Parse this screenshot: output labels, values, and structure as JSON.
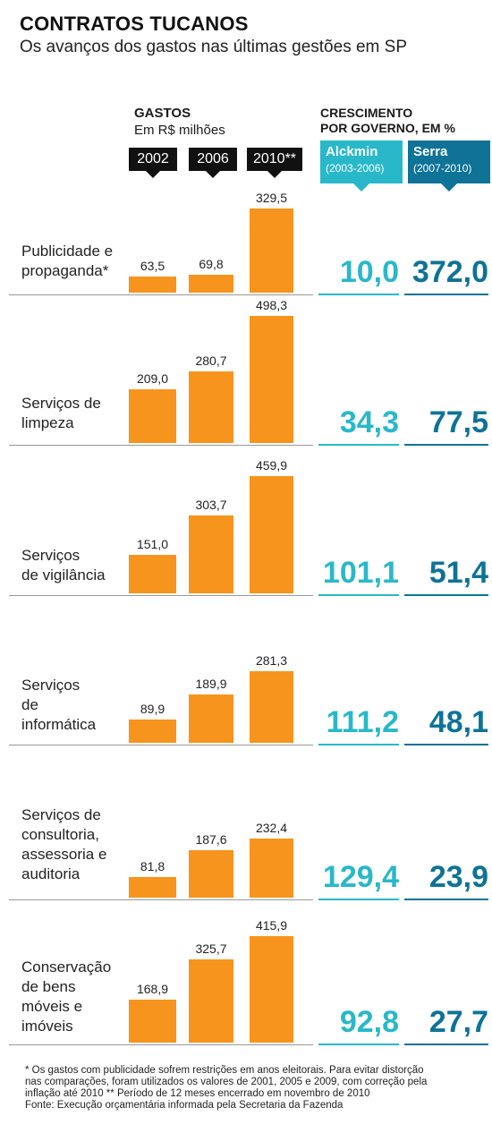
{
  "header": {
    "title": "CONTRATOS TUCANOS",
    "subtitle": "Os avanços dos gastos nas últimas gestões em SP"
  },
  "spending": {
    "title": "GASTOS",
    "unit": "Em R$ milhões",
    "years": [
      "2002",
      "2006",
      "2010**"
    ]
  },
  "growth": {
    "title_line1": "CRESCIMENTO",
    "title_line2": "POR GOVERNO, EM %",
    "governments": [
      {
        "name": "Alckmin",
        "period": "(2003-2006)"
      },
      {
        "name": "Serra",
        "period": "(2007-2010)"
      }
    ]
  },
  "colors": {
    "bar": "#f7941d",
    "alckmin": "#29b8c9",
    "serra": "#0e7396"
  },
  "chart_data": {
    "type": "bar",
    "series": [
      {
        "name": "2002",
        "values": [
          63.5,
          209.0,
          151.0,
          89.9,
          81.8,
          168.9
        ]
      },
      {
        "name": "2006",
        "values": [
          69.8,
          280.7,
          303.7,
          189.9,
          187.6,
          325.7
        ]
      },
      {
        "name": "2010**",
        "values": [
          329.5,
          498.3,
          459.9,
          281.3,
          232.4,
          415.9
        ]
      }
    ],
    "categories": [
      {
        "lines": [
          "Publicidade e",
          "propaganda*"
        ],
        "values": [
          "63,5",
          "69,8",
          "329,5"
        ],
        "alckmin": "10,0",
        "serra": "372,0"
      },
      {
        "lines": [
          "Serviços de",
          "limpeza"
        ],
        "values": [
          "209,0",
          "280,7",
          "498,3"
        ],
        "alckmin": "34,3",
        "serra": "77,5"
      },
      {
        "lines": [
          "Serviços",
          "de vigilância"
        ],
        "values": [
          "151,0",
          "303,7",
          "459,9"
        ],
        "alckmin": "101,1",
        "serra": "51,4"
      },
      {
        "lines": [
          "Serviços",
          "de",
          "informática"
        ],
        "values": [
          "89,9",
          "189,9",
          "281,3"
        ],
        "alckmin": "111,2",
        "serra": "48,1"
      },
      {
        "lines": [
          "Serviços de",
          "consultoria,",
          "assessoria e",
          "auditoria"
        ],
        "values": [
          "81,8",
          "187,6",
          "232,4"
        ],
        "alckmin": "129,4",
        "serra": "23,9"
      },
      {
        "lines": [
          "Conservação",
          "de bens",
          "móveis e",
          "imóveis"
        ],
        "values": [
          "168,9",
          "325,7",
          "415,9"
        ],
        "alckmin": "92,8",
        "serra": "27,7"
      }
    ]
  },
  "footnote": {
    "line1": "* Os gastos com publicidade sofrem restrições em anos eleitorais. Para evitar distorção",
    "line2": "nas comparações, foram utilizados os valores de 2001, 2005 e 2009, com correção pela",
    "line3": "inflação até 2010   ** Período de 12 meses encerrado em novembro de 2010",
    "line4": "Fonte: Execução orçamentária informada pela Secretaria da Fazenda"
  }
}
